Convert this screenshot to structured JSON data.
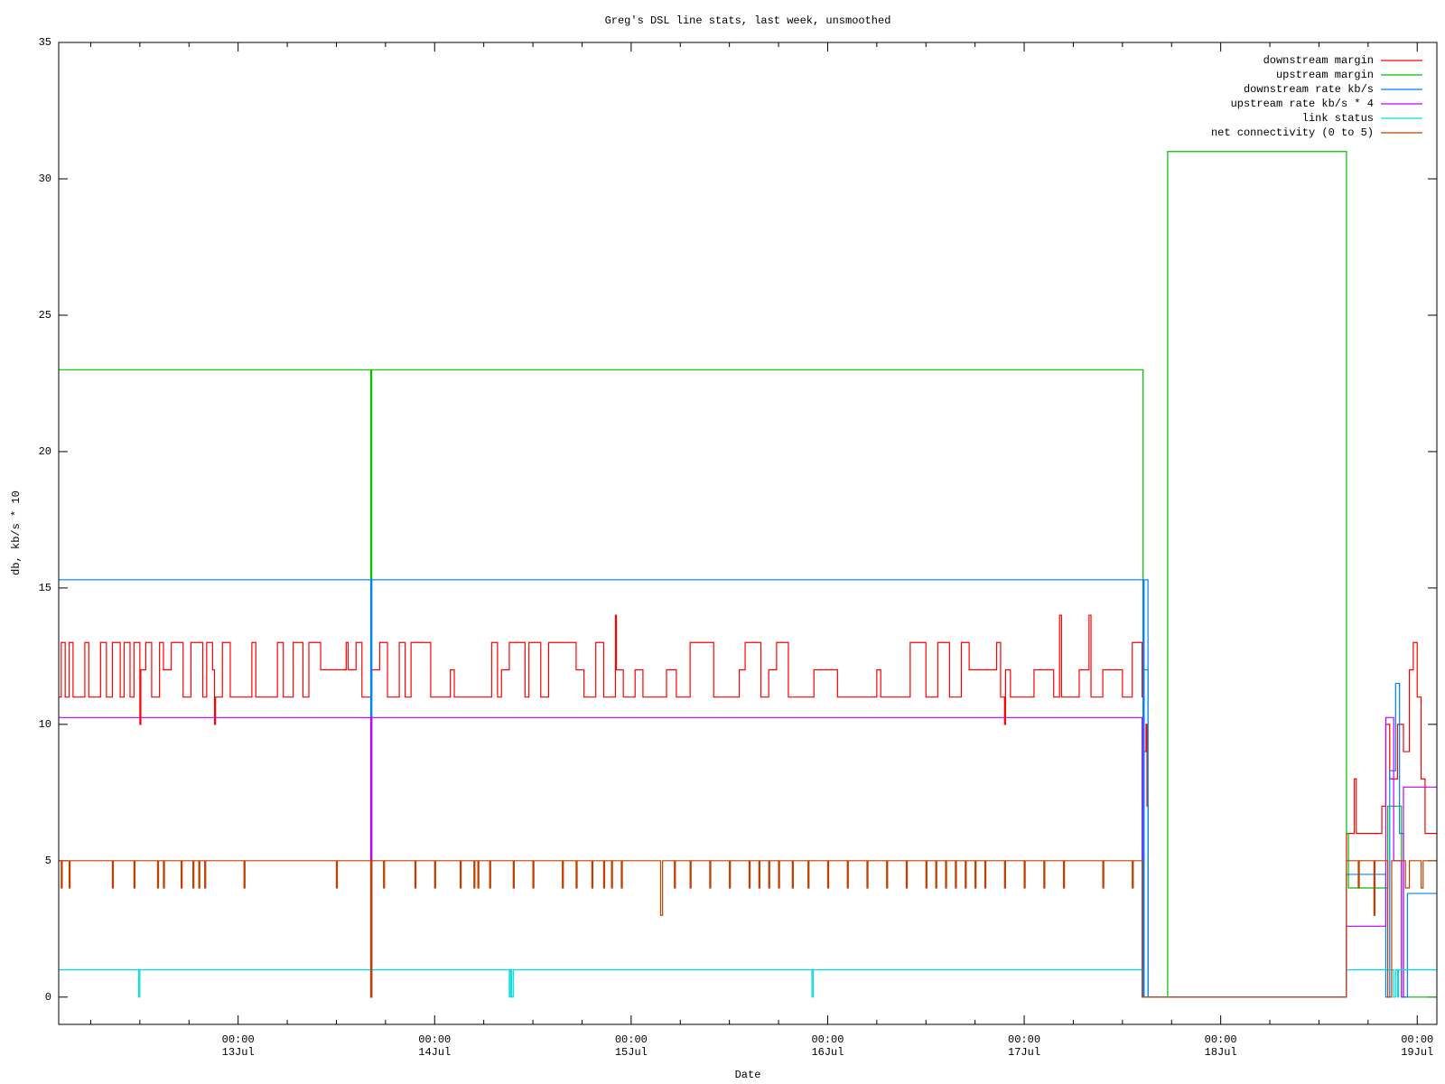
{
  "chart_data": {
    "type": "step",
    "title": "Greg's DSL line stats, last week, unsmoothed",
    "xlabel": "Date",
    "ylabel": "db, kb/s * 10",
    "xlim": [
      12.087,
      19.1
    ],
    "ylim": [
      -1,
      35
    ],
    "xticks": [
      {
        "value": 13,
        "label": "00:00",
        "sublabel": "13Jul"
      },
      {
        "value": 14,
        "label": "00:00",
        "sublabel": "14Jul"
      },
      {
        "value": 15,
        "label": "00:00",
        "sublabel": "15Jul"
      },
      {
        "value": 16,
        "label": "00:00",
        "sublabel": "16Jul"
      },
      {
        "value": 17,
        "label": "00:00",
        "sublabel": "17Jul"
      },
      {
        "value": 18,
        "label": "00:00",
        "sublabel": "18Jul"
      },
      {
        "value": 19,
        "label": "00:00",
        "sublabel": "19Jul"
      }
    ],
    "xminorticks": [
      12.25,
      12.5,
      12.75,
      13.25,
      13.5,
      13.75,
      14.25,
      14.5,
      14.75,
      15.25,
      15.5,
      15.75,
      16.25,
      16.5,
      16.75,
      17.25,
      17.5,
      17.75,
      18.25,
      18.5,
      18.75
    ],
    "yticks": [
      0,
      5,
      10,
      15,
      20,
      25,
      30,
      35
    ],
    "grid": false,
    "legend": "top-right",
    "series": [
      {
        "name": "downstream margin",
        "color": "#ff0000",
        "x": [
          12.087,
          12.1,
          12.12,
          12.14,
          12.16,
          12.22,
          12.24,
          12.3,
          12.33,
          12.36,
          12.4,
          12.42,
          12.45,
          12.47,
          12.5,
          12.505,
          12.53,
          12.56,
          12.6,
          12.62,
          12.66,
          12.72,
          12.76,
          12.82,
          12.84,
          12.87,
          12.88,
          12.885,
          12.92,
          12.96,
          13.07,
          13.09,
          13.2,
          13.23,
          13.28,
          13.33,
          13.36,
          13.42,
          13.55,
          13.56,
          13.6,
          13.63,
          13.68,
          13.72,
          13.76,
          13.82,
          13.85,
          13.88,
          13.98,
          14.08,
          14.1,
          14.29,
          14.32,
          14.34,
          14.38,
          14.46,
          14.48,
          14.54,
          14.58,
          14.72,
          14.76,
          14.82,
          14.86,
          14.92,
          14.925,
          14.96,
          15.02,
          15.06,
          15.18,
          15.23,
          15.3,
          15.42,
          15.55,
          15.58,
          15.66,
          15.7,
          15.74,
          15.8,
          15.93,
          16.05,
          16.25,
          16.27,
          16.42,
          16.5,
          16.56,
          16.62,
          16.68,
          16.72,
          16.86,
          16.88,
          16.9,
          16.905,
          16.93,
          17.05,
          17.15,
          17.18,
          17.19,
          17.28,
          17.33,
          17.34,
          17.4,
          17.5,
          17.55,
          17.6,
          17.61,
          17.62,
          17.625,
          17.63,
          18.64,
          18.68,
          18.69,
          18.82,
          18.84,
          18.86,
          18.9,
          18.93,
          18.96,
          18.98,
          19.0,
          19.02,
          19.04,
          19.1
        ],
        "values": [
          11,
          13,
          11,
          13,
          11,
          13,
          11,
          13,
          11,
          13,
          11,
          13,
          11,
          13,
          10,
          12,
          13,
          11,
          13,
          12,
          13,
          11,
          13,
          11,
          13,
          12,
          10,
          11,
          13,
          11,
          13,
          11,
          13,
          11,
          13,
          11,
          13,
          12,
          13,
          12,
          13,
          11,
          12,
          13,
          11,
          13,
          11,
          13,
          11,
          12,
          11,
          13,
          11,
          12,
          13,
          11,
          13,
          11,
          13,
          12,
          11,
          13,
          11,
          14,
          12,
          11,
          12,
          11,
          12,
          11,
          13,
          11,
          12,
          13,
          11,
          12,
          13,
          11,
          12,
          11,
          12,
          11,
          13,
          11,
          13,
          11,
          13,
          12,
          13,
          11,
          10,
          12,
          11,
          12,
          11,
          14,
          11,
          12,
          14,
          11,
          12,
          11,
          13,
          11,
          9,
          10,
          7,
          0,
          6,
          8,
          6,
          7,
          10,
          8,
          10,
          9,
          12,
          13,
          11,
          8,
          6,
          6
        ]
      },
      {
        "name": "upstream margin",
        "color": "#00c000",
        "x": [
          12.087,
          13.675,
          13.68,
          17.605,
          17.61,
          17.63,
          17.73,
          18.64,
          18.65,
          18.85,
          18.92,
          19.1
        ],
        "values": [
          23,
          0,
          23,
          0,
          12,
          0,
          31,
          6,
          4,
          7,
          0,
          0
        ]
      },
      {
        "name": "downstream rate kb/s",
        "color": "#0080ff",
        "x": [
          12.087,
          13.675,
          13.68,
          17.605,
          17.61,
          17.63,
          18.64,
          18.84,
          18.86,
          18.89,
          18.91,
          18.93,
          18.95,
          19.1
        ],
        "values": [
          15.3,
          0,
          15.3,
          0,
          15.3,
          0,
          4.5,
          0,
          8.3,
          11.5,
          6,
          0,
          3.8,
          3.8
        ]
      },
      {
        "name": "upstream rate kb/s * 4",
        "color": "#c000ff",
        "x": [
          12.087,
          13.675,
          13.68,
          17.6,
          18.64,
          18.84,
          18.88,
          18.92,
          18.93,
          19.1
        ],
        "values": [
          10.25,
          0,
          10.25,
          0,
          2.6,
          10.25,
          5,
          0,
          7.7,
          7.7
        ]
      },
      {
        "name": "link status",
        "color": "#00e0e0",
        "x": [
          12.087,
          12.494,
          12.5,
          14.38,
          14.386,
          14.392,
          14.4,
          15.92,
          15.926,
          17.6,
          18.64,
          18.88,
          18.89,
          18.9,
          18.905,
          19.1
        ],
        "values": [
          1,
          0,
          1,
          0,
          1,
          0,
          1,
          0,
          1,
          0,
          1,
          0,
          1,
          0,
          1,
          1
        ]
      },
      {
        "name": "net connectivity (0 to 5)",
        "color": "#c04000",
        "x": [
          12.087,
          12.1,
          12.105,
          12.14,
          12.145,
          12.36,
          12.365,
          12.47,
          12.475,
          12.59,
          12.595,
          12.62,
          12.625,
          12.71,
          12.715,
          12.77,
          12.775,
          12.8,
          12.805,
          12.83,
          12.835,
          13.03,
          13.035,
          13.5,
          13.505,
          13.675,
          13.68,
          13.74,
          13.745,
          13.9,
          13.905,
          14.0,
          14.005,
          14.13,
          14.135,
          14.2,
          14.205,
          14.22,
          14.225,
          14.28,
          14.285,
          14.4,
          14.405,
          14.5,
          14.505,
          14.65,
          14.655,
          14.72,
          14.725,
          14.8,
          14.805,
          14.86,
          14.865,
          14.9,
          14.905,
          14.95,
          14.955,
          15.15,
          15.16,
          15.22,
          15.225,
          15.3,
          15.305,
          15.4,
          15.405,
          15.5,
          15.505,
          15.6,
          15.605,
          15.65,
          15.655,
          15.7,
          15.705,
          15.75,
          15.755,
          15.82,
          15.825,
          15.9,
          15.905,
          16.0,
          16.005,
          16.1,
          16.105,
          16.2,
          16.205,
          16.3,
          16.305,
          16.4,
          16.405,
          16.5,
          16.505,
          16.55,
          16.555,
          16.6,
          16.605,
          16.65,
          16.655,
          16.7,
          16.705,
          16.75,
          16.755,
          16.8,
          16.805,
          16.9,
          16.905,
          17.0,
          17.005,
          17.1,
          17.105,
          17.2,
          17.205,
          17.4,
          17.405,
          17.55,
          17.555,
          17.6,
          18.64,
          18.7,
          18.705,
          18.78,
          18.785,
          18.85,
          18.87,
          18.94,
          18.96,
          19.02,
          19.03,
          19.1
        ],
        "values": [
          5,
          4,
          5,
          4,
          5,
          4,
          5,
          4,
          5,
          4,
          5,
          4,
          5,
          4,
          5,
          4,
          5,
          4,
          5,
          4,
          5,
          4,
          5,
          4,
          5,
          0,
          5,
          4,
          5,
          4,
          5,
          4,
          5,
          4,
          5,
          4,
          5,
          4,
          5,
          4,
          5,
          4,
          5,
          4,
          5,
          4,
          5,
          4,
          5,
          4,
          5,
          4,
          5,
          4,
          5,
          4,
          5,
          3,
          5,
          4,
          5,
          4,
          5,
          4,
          5,
          4,
          5,
          4,
          5,
          4,
          5,
          4,
          5,
          4,
          5,
          4,
          5,
          4,
          5,
          4,
          5,
          4,
          5,
          4,
          5,
          4,
          5,
          4,
          5,
          4,
          5,
          4,
          5,
          4,
          5,
          4,
          5,
          4,
          5,
          4,
          5,
          4,
          5,
          4,
          5,
          4,
          5,
          4,
          5,
          4,
          5,
          4,
          5,
          4,
          5,
          0,
          5,
          4,
          5,
          3,
          5,
          0,
          5,
          4,
          5,
          4,
          5,
          5
        ]
      }
    ]
  }
}
